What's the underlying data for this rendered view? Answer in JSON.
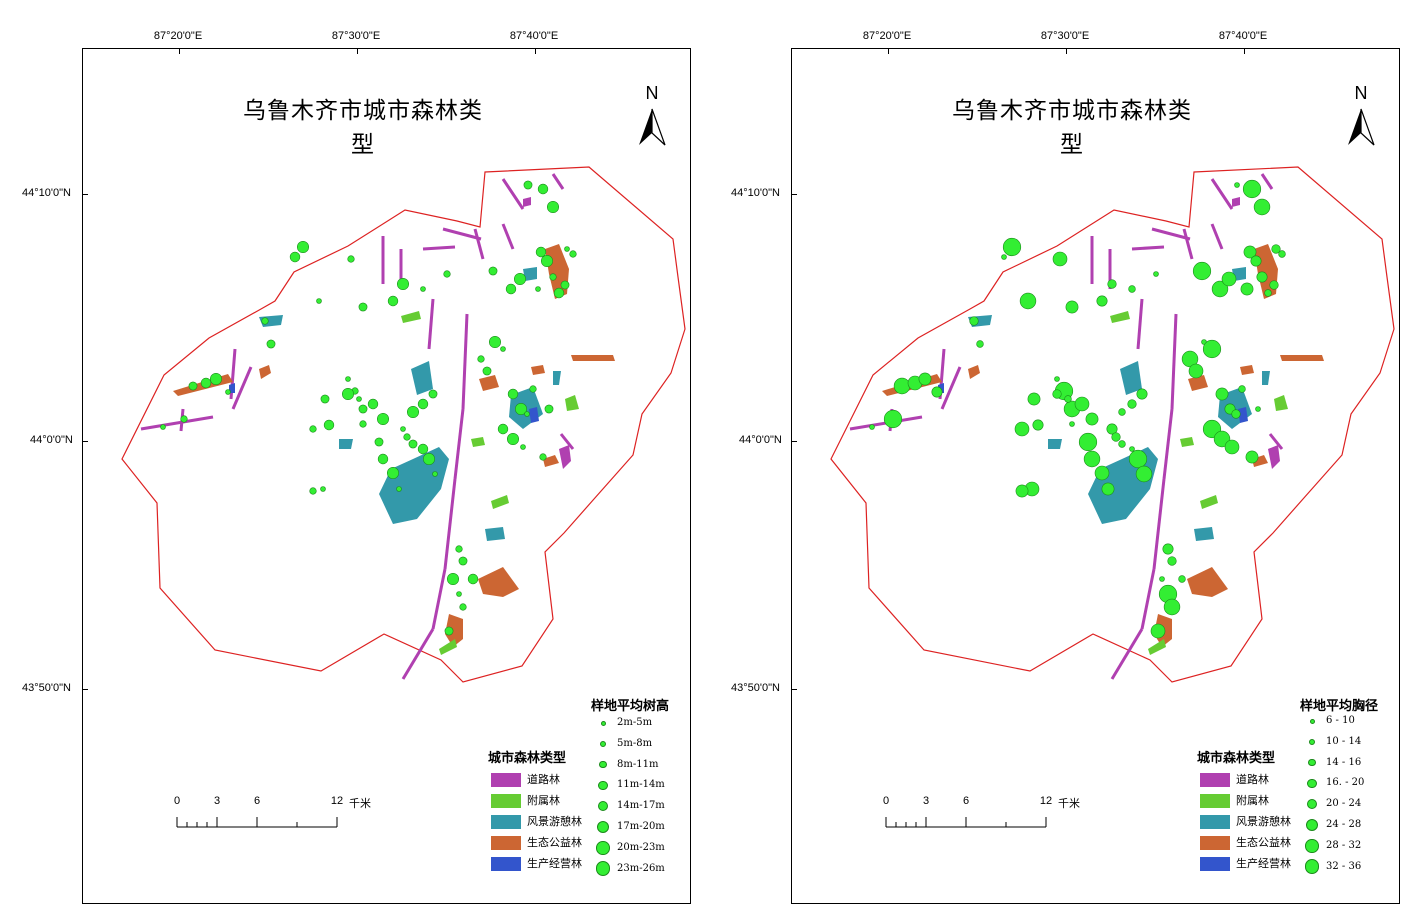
{
  "colors": {
    "road_forest": "#b040b0",
    "attached_forest": "#66cc33",
    "scenic_forest": "#3399aa",
    "eco_forest": "#cc6633",
    "production_forest": "#3355cc",
    "boundary": "#dd2222",
    "plot_point": "#33ee33"
  },
  "graticule": {
    "lon_labels": [
      "87°20'0\"E",
      "87°30'0\"E",
      "87°40'0\"E"
    ],
    "lat_labels": [
      "44°10'0\"N",
      "44°0'0\"N",
      "43°50'0\"N"
    ]
  },
  "panels": [
    {
      "title": "乌鲁木齐市城市森林类型",
      "north_label": "N",
      "size_legend": {
        "title": "样地平均树高",
        "items": [
          "2m-5m",
          "5m-8m",
          "8m-11m",
          "11m-14m",
          "14m-17m",
          "17m-20m",
          "20m-23m",
          "23m-26m"
        ]
      },
      "type_legend": {
        "title": "城市森林类型",
        "items": [
          "道路林",
          "附属林",
          "风景游憩林",
          "生态公益林",
          "生产经营林"
        ]
      },
      "scalebar": {
        "ticks": [
          "0",
          "3",
          "6",
          "12"
        ],
        "unit": "千米"
      }
    },
    {
      "title": "乌鲁木齐市城市森林类型",
      "north_label": "N",
      "size_legend": {
        "title": "样地平均胸径",
        "items": [
          "6 - 10",
          "10 - 14",
          "14 - 16",
          "16. - 20",
          "20 - 24",
          "24 - 28",
          "28 - 32",
          "32 - 36"
        ]
      },
      "type_legend": {
        "title": "城市森林类型",
        "items": [
          "道路林",
          "附属林",
          "风景游憩林",
          "生态公益林",
          "生产经营林"
        ]
      },
      "scalebar": {
        "ticks": [
          "0",
          "3",
          "6",
          "12"
        ],
        "unit": "千米"
      }
    }
  ]
}
